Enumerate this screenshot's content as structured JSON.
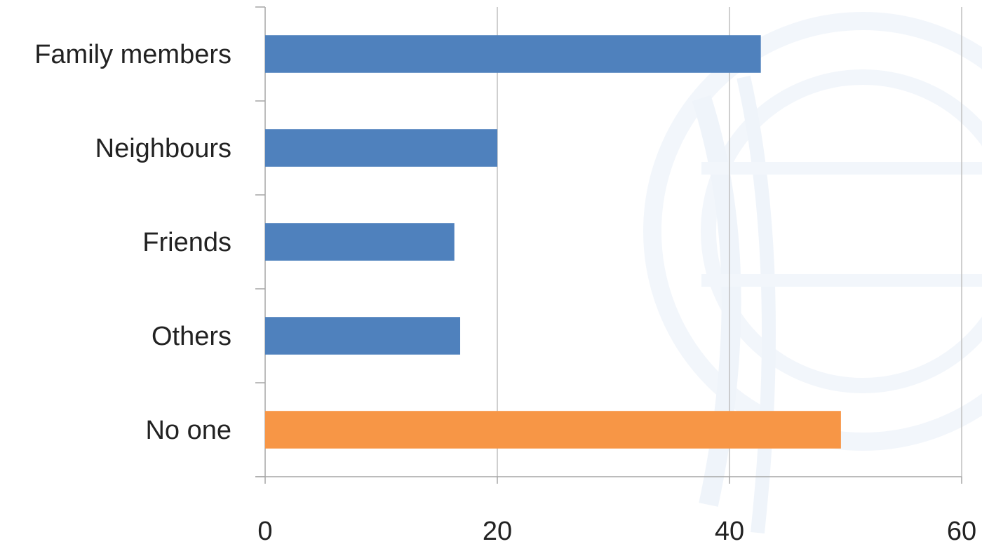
{
  "chart_data": {
    "type": "bar",
    "orientation": "horizontal",
    "categories": [
      "Family members",
      "Neighbours",
      "Friends",
      "Others",
      "No one"
    ],
    "values": [
      42.7,
      20,
      16.3,
      16.8,
      49.6
    ],
    "bar_colors": [
      "#4F81BD",
      "#4F81BD",
      "#4F81BD",
      "#4F81BD",
      "#F79646"
    ],
    "xlim": [
      0,
      60
    ],
    "xticks": [
      0,
      20,
      40,
      60
    ],
    "grid": true,
    "title": "",
    "xlabel": "",
    "ylabel": ""
  },
  "colors": {
    "primary_bar": "#4F81BD",
    "highlight_bar": "#F79646",
    "gridline": "#BFBFBF",
    "watermark": "#E8EFF8"
  }
}
